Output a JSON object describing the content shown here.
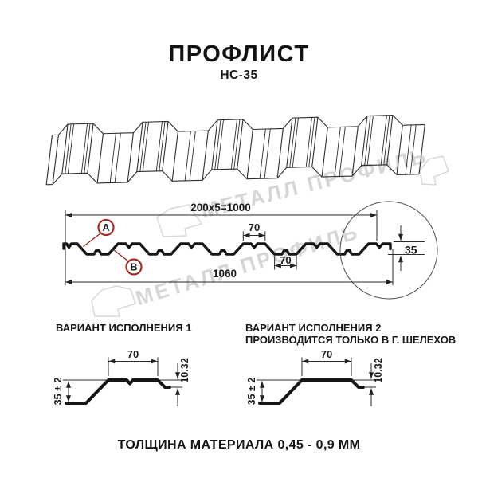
{
  "title": "ПРОФЛИСТ",
  "subtitle": "НС-35",
  "watermark": {
    "text": "МЕТАЛЛ ПРОФИЛЬ",
    "color": "#d6d6d6"
  },
  "accent_color": "#9e2b24",
  "section": {
    "dim_top_total": "200x5=1000",
    "dim_crest_width": "70",
    "dim_valley_width": "70",
    "dim_overall_width": "1060",
    "dim_height": "35",
    "label_a": "A",
    "label_b": "B"
  },
  "variants": {
    "v1": {
      "heading": "ВАРИАНТ ИСПОЛНЕНИЯ 1",
      "dim_crest": "70",
      "dim_height": "35 ± 2",
      "dim_edge": "10.32"
    },
    "v2": {
      "heading": "ВАРИАНТ ИСПОЛНЕНИЯ 2",
      "subheading": "ПРОИЗВОДИТСЯ ТОЛЬКО В Г. ШЕЛЕХОВ",
      "dim_crest": "70",
      "dim_height": "35 ± 2",
      "dim_edge": "10.32"
    }
  },
  "footer": "ТОЛЩИНА МАТЕРИАЛА 0,45 - 0,9 ММ"
}
